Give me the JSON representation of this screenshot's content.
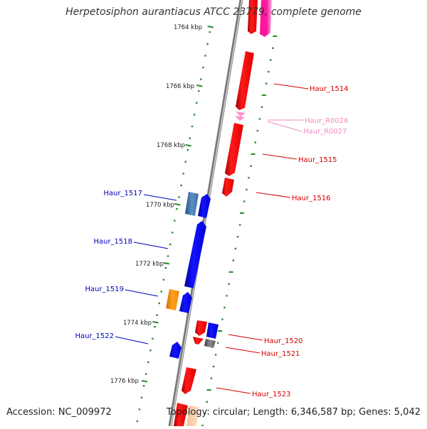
{
  "title": "Herpetosiphon aurantiacus ATCC 23779, complete genome",
  "accession": "Accession: NC_009972",
  "summary": "Topology: circular; Length: 6,346,587 bp; Genes: 5,042",
  "colors": {
    "forward_gene": "#ff0000",
    "reverse_gene": "#0000ff",
    "rna": "#ff8fc6",
    "tick": "#2a8a2a",
    "backbone": "#8a8a8a"
  },
  "scale": {
    "labels": [
      "1764 kbp",
      "1766 kbp",
      "1768 kbp",
      "1770 kbp",
      "1772 kbp",
      "1774 kbp",
      "1776 kbp"
    ]
  },
  "gene_labels": {
    "right": [
      "Haur_1514",
      "Haur_R0026",
      "Haur_R0027",
      "Haur_1515",
      "Haur_1516",
      "Haur_1520",
      "Haur_1521",
      "Haur_1523"
    ],
    "left": [
      "Haur_1517",
      "Haur_1518",
      "Haur_1519",
      "Haur_1522"
    ]
  },
  "gene_icons": {
    "forward": "red-arrow-gene-icon",
    "reverse": "blue-arrow-gene-icon"
  }
}
